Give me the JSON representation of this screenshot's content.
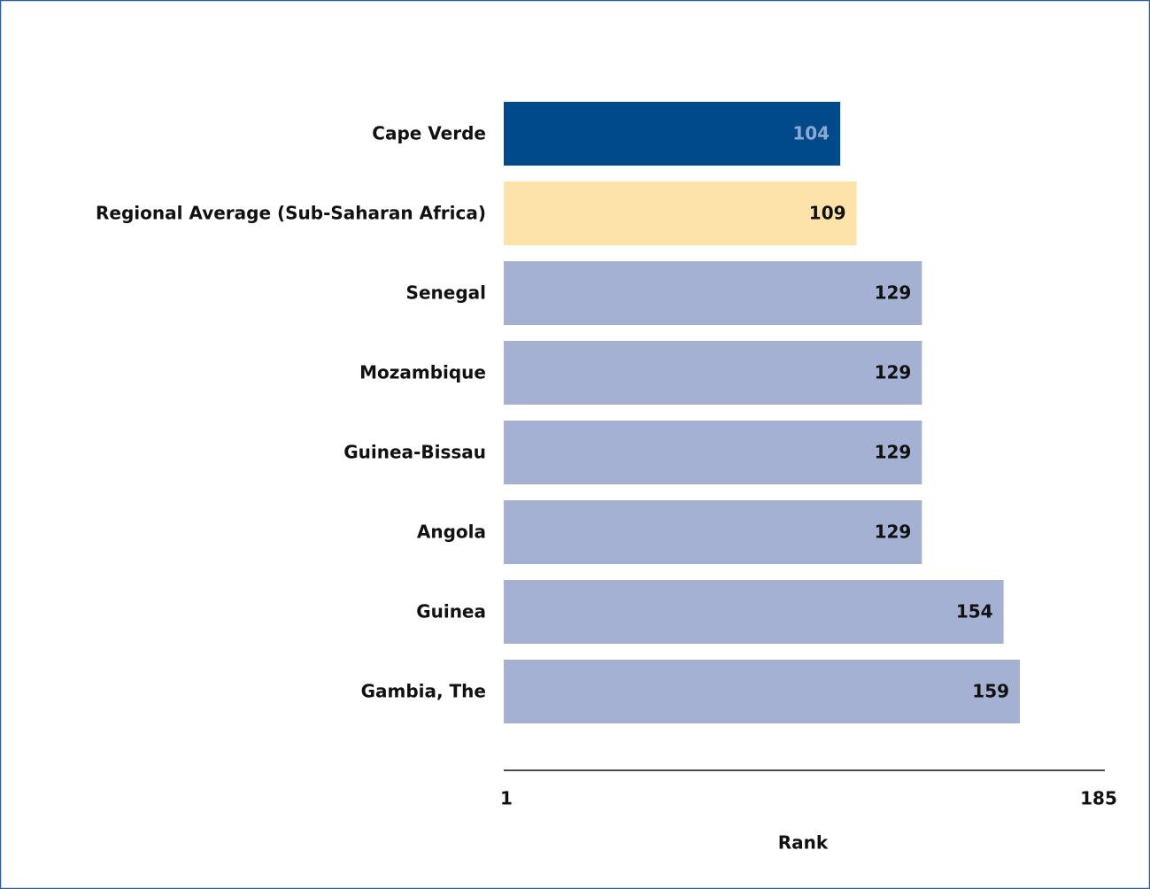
{
  "chart_data": {
    "type": "barh",
    "categories": [
      "Cape Verde",
      "Regional Average (Sub-Saharan Africa)",
      "Senegal",
      "Mozambique",
      "Guinea-Bissau",
      "Angola",
      "Guinea",
      "Gambia, The"
    ],
    "values": [
      104,
      109,
      129,
      129,
      129,
      129,
      154,
      159
    ],
    "colors": [
      "#004a8c",
      "#fde2aa",
      "#a5b1d3",
      "#a5b1d3",
      "#a5b1d3",
      "#a5b1d3",
      "#a5b1d3",
      "#a5b1d3"
    ],
    "value_label_colors": [
      "#8ea8d0",
      "#111111",
      "#111111",
      "#111111",
      "#111111",
      "#111111",
      "#111111",
      "#111111"
    ],
    "xlabel": "Rank",
    "xlim": [
      1,
      185
    ],
    "xticks": [
      1,
      185
    ]
  }
}
